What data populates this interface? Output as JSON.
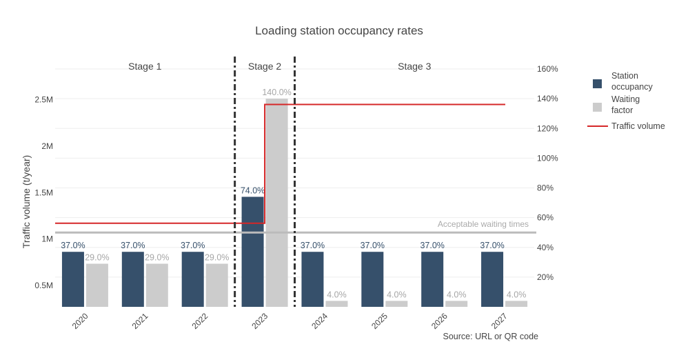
{
  "chart_data": {
    "type": "bar",
    "title": "Loading station occupancy rates",
    "source": "Source: URL or QR code",
    "categories": [
      "2020",
      "2021",
      "2022",
      "2023",
      "2024",
      "2025",
      "2026",
      "2027"
    ],
    "series": [
      {
        "name": "Station occupancy",
        "axis": "right",
        "values": [
          37.0,
          37.0,
          37.0,
          74.0,
          37.0,
          37.0,
          37.0,
          37.0
        ],
        "labels": [
          "37.0%",
          "37.0%",
          "37.0%",
          "74.0%",
          "37.0%",
          "37.0%",
          "37.0%",
          "37.0%"
        ],
        "color": "#36506b"
      },
      {
        "name": "Waiting factor",
        "axis": "right",
        "values": [
          29.0,
          29.0,
          29.0,
          140.0,
          4.0,
          4.0,
          4.0,
          4.0
        ],
        "labels": [
          "29.0%",
          "29.0%",
          "29.0%",
          "140.0%",
          "4.0%",
          "4.0%",
          "4.0%",
          "4.0%"
        ],
        "color": "#cccccc"
      },
      {
        "name": "Traffic volume",
        "type": "line",
        "shape": "step",
        "axis": "left",
        "values": [
          1170000,
          1170000,
          1170000,
          2450000,
          2450000,
          2450000,
          2450000,
          2450000
        ],
        "color": "#d62728"
      }
    ],
    "ylabel": "Traffic volume (t/year)",
    "yticks": [
      {
        "value": 500000,
        "label": "0.5M"
      },
      {
        "value": 1000000,
        "label": "1M"
      },
      {
        "value": 1500000,
        "label": "1.5M"
      },
      {
        "value": 2000000,
        "label": "2M"
      },
      {
        "value": 2500000,
        "label": "2.5M"
      }
    ],
    "ylim": [
      270000,
      2832000
    ],
    "y2ticks": [
      {
        "value": 20,
        "label": "20%"
      },
      {
        "value": 40,
        "label": "40%"
      },
      {
        "value": 60,
        "label": "60%"
      },
      {
        "value": 80,
        "label": "80%"
      },
      {
        "value": 100,
        "label": "100%"
      },
      {
        "value": 120,
        "label": "120%"
      },
      {
        "value": 140,
        "label": "140%"
      },
      {
        "value": 160,
        "label": "160%"
      }
    ],
    "y2lim": [
      0,
      160
    ],
    "reference_line": {
      "value": 50,
      "label": "Acceptable waiting times",
      "color": "#bbbbbb"
    },
    "stages": [
      {
        "label": "Stage 1",
        "from": "2020",
        "to": "2022"
      },
      {
        "label": "Stage 2",
        "from": "2023",
        "to": "2023"
      },
      {
        "label": "Stage 3",
        "from": "2024",
        "to": "2027"
      }
    ],
    "legend": {
      "position": "right",
      "items": [
        {
          "label_lines": [
            "Station",
            "occupancy"
          ],
          "color": "#36506b",
          "kind": "box"
        },
        {
          "label_lines": [
            "Waiting",
            "factor"
          ],
          "color": "#cccccc",
          "kind": "box"
        },
        {
          "label_lines": [
            "Traffic volume"
          ],
          "color": "#d62728",
          "kind": "line"
        }
      ]
    },
    "grid": true
  }
}
